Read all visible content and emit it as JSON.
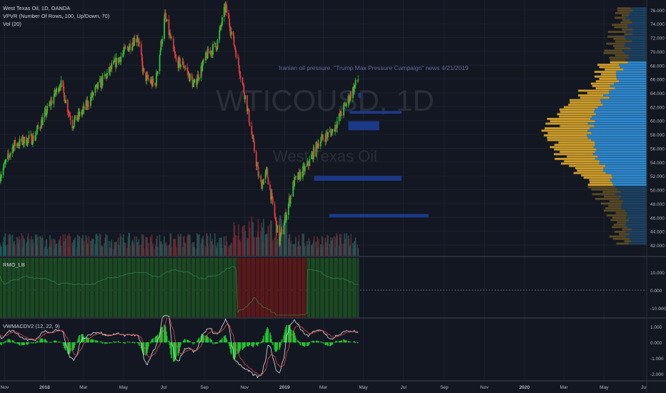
{
  "chart_data": {
    "type": "candlestick",
    "symbol_line": "West Texas Oil, 1D, OANDA",
    "indicators": {
      "vpvr": "VPVR (Number Of Rows, 100, Up/Down, 70)",
      "vol": "Vol (20)",
      "rmo": "RMO_LB",
      "macd": "VWMACDV2 (12, 22, 9)"
    },
    "watermark": {
      "symbol": "WTICOUSD, 1D",
      "name": "West Texas Oil"
    },
    "annotation": "Iranian oil pressure. \"Trump Max Pressure Campaign\" news 4/21/2019",
    "price_axis": {
      "ticks": [
        "76.000",
        "74.000",
        "72.000",
        "70.000",
        "68.000",
        "66.000",
        "64.000",
        "62.000",
        "60.000",
        "58.000",
        "56.000",
        "54.000",
        "52.000",
        "50.000",
        "48.000",
        "46.000",
        "44.000",
        "42.000"
      ],
      "range": [
        42,
        76.5
      ]
    },
    "rmo_axis": {
      "ticks": [
        "10.000",
        "0.000",
        "-10.000"
      ]
    },
    "macd_axis": {
      "ticks": [
        "1.000",
        "0.000",
        "-1.000",
        "-2.000"
      ]
    },
    "time_axis": {
      "ticks": [
        "Nov",
        "2018",
        "Mar",
        "May",
        "Jul",
        "Sep",
        "Nov",
        "2019",
        "Mar",
        "May",
        "Jul",
        "Sep",
        "Nov",
        "2020",
        "Mar",
        "May",
        "Jul"
      ]
    },
    "price_path": [
      [
        "2017-10-25",
        52.0
      ],
      [
        "2017-11-15",
        56.5
      ],
      [
        "2017-12-15",
        57.5
      ],
      [
        "2018-01-05",
        61.5
      ],
      [
        "2018-01-25",
        65.5
      ],
      [
        "2018-02-12",
        59.5
      ],
      [
        "2018-03-01",
        61.5
      ],
      [
        "2018-03-20",
        64.5
      ],
      [
        "2018-04-20",
        68.5
      ],
      [
        "2018-05-22",
        72.3
      ],
      [
        "2018-06-01",
        66.5
      ],
      [
        "2018-06-18",
        65.0
      ],
      [
        "2018-07-03",
        75.0
      ],
      [
        "2018-07-20",
        68.5
      ],
      [
        "2018-08-01",
        68.0
      ],
      [
        "2018-08-16",
        65.0
      ],
      [
        "2018-09-05",
        69.5
      ],
      [
        "2018-09-20",
        71.0
      ],
      [
        "2018-10-03",
        76.5
      ],
      [
        "2018-10-20",
        69.5
      ],
      [
        "2018-11-05",
        62.0
      ],
      [
        "2018-11-25",
        50.5
      ],
      [
        "2018-12-05",
        52.5
      ],
      [
        "2018-12-24",
        42.5
      ],
      [
        "2019-01-15",
        51.0
      ],
      [
        "2019-02-05",
        53.5
      ],
      [
        "2019-02-22",
        57.0
      ],
      [
        "2019-03-15",
        58.5
      ],
      [
        "2019-04-05",
        62.5
      ],
      [
        "2019-04-23",
        66.0
      ]
    ],
    "supply_zones": [
      {
        "from": "2019-04-23",
        "to": "2019-04-27",
        "low": 63.3,
        "high": 64.0
      },
      {
        "from": "2019-04-10",
        "to": "2019-06-28",
        "low": 61.0,
        "high": 61.4
      },
      {
        "from": "2019-04-08",
        "to": "2019-05-25",
        "low": 58.6,
        "high": 59.9
      },
      {
        "from": "2019-02-15",
        "to": "2019-06-28",
        "low": 51.3,
        "high": 52.0
      },
      {
        "from": "2019-03-10",
        "to": "2019-08-08",
        "low": 46.0,
        "high": 46.5
      }
    ],
    "colors": {
      "up": "#26c932",
      "down": "#e23b3b",
      "vpvr_up": "#2f8fd8",
      "vpvr_down": "#d8a42a",
      "zone": "#1f3f9a",
      "rmo_pos": "#1c4a22",
      "rmo_neg": "#5a1a1a",
      "macd_line": "#e0e0e0",
      "signal_line": "#e2474b"
    }
  }
}
